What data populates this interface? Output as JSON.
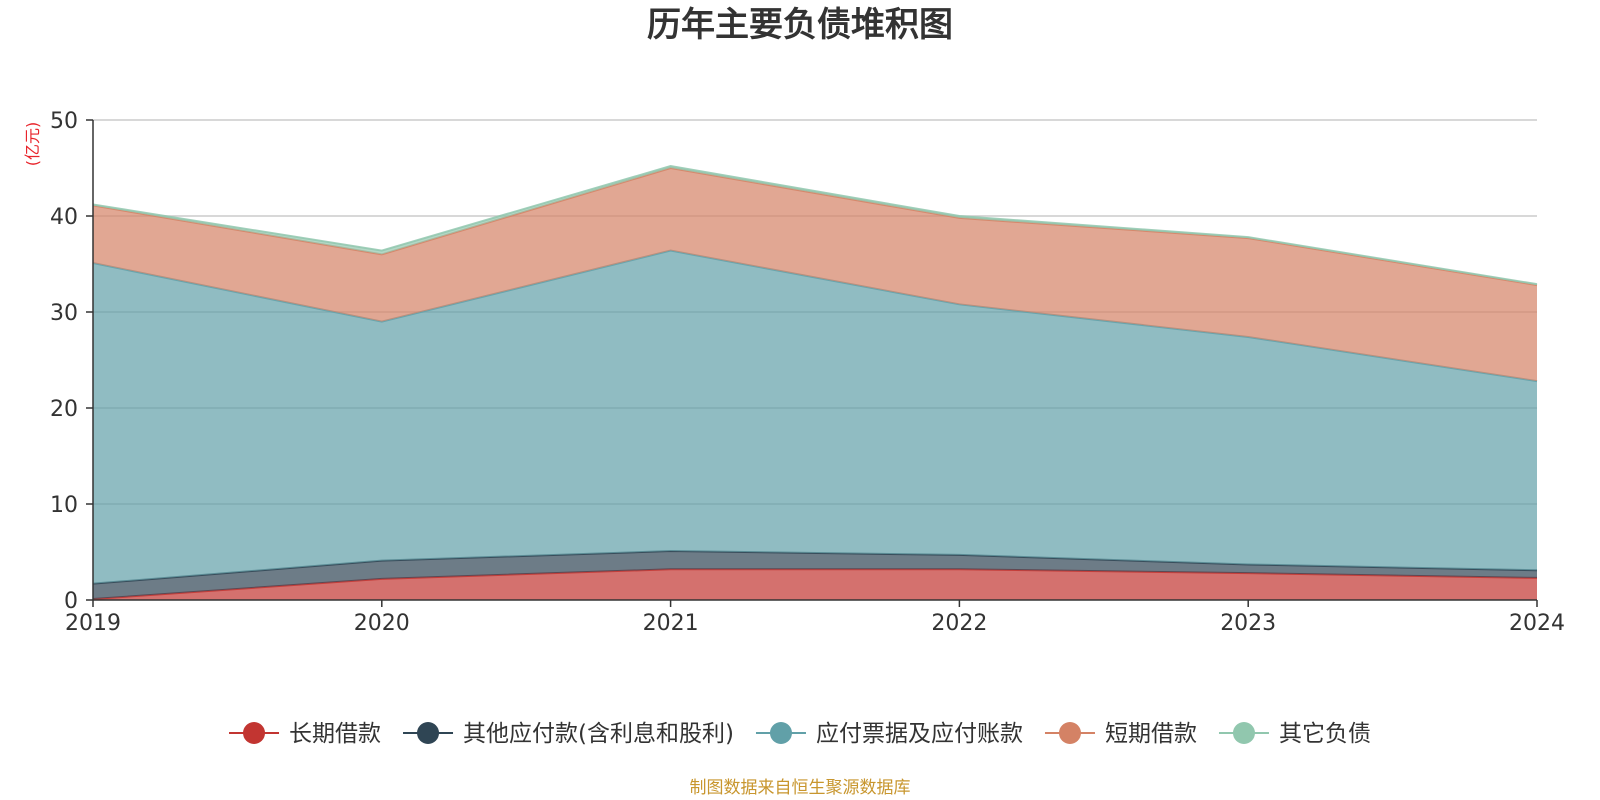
{
  "chart_data": {
    "type": "area",
    "stacked": true,
    "title": "历年主要负债堆积图",
    "unit_label": "(亿元)",
    "x": [
      "2019",
      "2020",
      "2021",
      "2022",
      "2023",
      "2024"
    ],
    "ylim": [
      0,
      50
    ],
    "yticks": [
      "0",
      "10",
      "20",
      "30",
      "40",
      "50"
    ],
    "grid": true,
    "legend_position": "bottom",
    "series": [
      {
        "name": "长期借款",
        "color": "#c23531",
        "values": [
          0.1,
          2.2,
          3.2,
          3.2,
          2.8,
          2.3
        ]
      },
      {
        "name": "其他应付款(含利息和股利)",
        "color": "#2f4554",
        "values": [
          1.6,
          1.9,
          1.9,
          1.5,
          0.9,
          0.8
        ]
      },
      {
        "name": "应付票据及应付账款",
        "color": "#61a0a8",
        "values": [
          33.4,
          24.9,
          31.3,
          26.1,
          23.7,
          19.7
        ]
      },
      {
        "name": "短期借款",
        "color": "#d48265",
        "values": [
          6.0,
          7.0,
          8.6,
          9.0,
          10.3,
          10.0
        ]
      },
      {
        "name": "其它负债",
        "color": "#91c7ae",
        "values": [
          0.1,
          0.4,
          0.2,
          0.2,
          0.1,
          0.1
        ]
      }
    ],
    "source": "制图数据来自恒生聚源数据库"
  }
}
